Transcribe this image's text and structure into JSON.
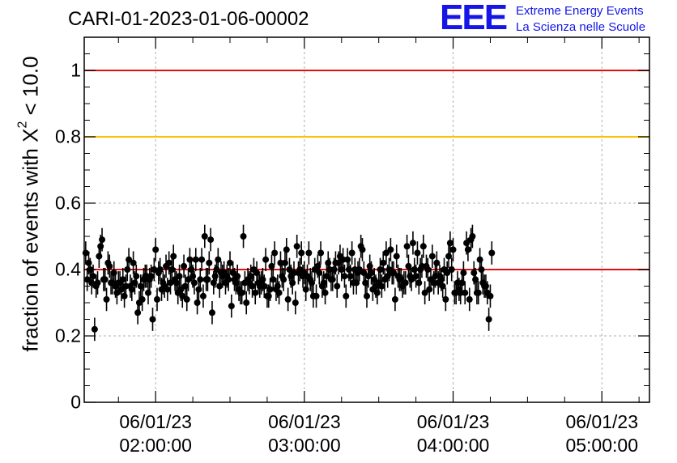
{
  "header": {
    "title": "CARI-01-2023-01-06-00002",
    "logo_text": "EEE",
    "logo_line1": "Extreme Energy Events",
    "logo_line2": "La Scienza nelle Scuole"
  },
  "chart_data": {
    "type": "scatter",
    "title": "CARI-01-2023-01-06-00002",
    "ylabel_prefix": "fraction of events with",
    "ylabel_symbol": "X",
    "ylabel_exponent": "2",
    "ylabel_suffix": "< 10.0",
    "ylim": [
      0,
      1.1
    ],
    "yticks": [
      {
        "value": 0,
        "label": "0"
      },
      {
        "value": 0.2,
        "label": "0.2"
      },
      {
        "value": 0.4,
        "label": "0.4"
      },
      {
        "value": 0.6,
        "label": "0.6"
      },
      {
        "value": 0.8,
        "label": "0.8"
      },
      {
        "value": 1,
        "label": "1"
      }
    ],
    "xlim_hours": [
      1.52,
      5.32
    ],
    "xticks": [
      {
        "hour": 2,
        "date": "06/01/23",
        "time": "02:00:00"
      },
      {
        "hour": 3,
        "date": "06/01/23",
        "time": "03:00:00"
      },
      {
        "hour": 4,
        "date": "06/01/23",
        "time": "04:00:00"
      },
      {
        "hour": 5,
        "date": "06/01/23",
        "time": "05:00:00"
      }
    ],
    "grid": true,
    "reference_lines": [
      {
        "value": 1.0,
        "color": "#e01010"
      },
      {
        "value": 0.8,
        "color": "#ffc000"
      },
      {
        "value": 0.4,
        "color": "#e01010"
      }
    ],
    "marker_color": "#000000",
    "series": [
      {
        "x_start_hour": 1.53,
        "x_step_hours": 0.01,
        "error": 0.035,
        "y": [
          0.45,
          0.37,
          0.42,
          0.4,
          0.36,
          0.38,
          0.22,
          0.35,
          0.36,
          0.44,
          0.47,
          0.49,
          0.37,
          0.37,
          0.31,
          0.42,
          0.41,
          0.36,
          0.36,
          0.39,
          0.35,
          0.33,
          0.36,
          0.36,
          0.34,
          0.37,
          0.32,
          0.35,
          0.4,
          0.43,
          0.35,
          0.34,
          0.42,
          0.36,
          0.38,
          0.27,
          0.3,
          0.35,
          0.31,
          0.37,
          0.38,
          0.38,
          0.33,
          0.37,
          0.38,
          0.25,
          0.4,
          0.46,
          0.31,
          0.39,
          0.4,
          0.34,
          0.36,
          0.35,
          0.41,
          0.34,
          0.42,
          0.36,
          0.4,
          0.44,
          0.37,
          0.36,
          0.33,
          0.38,
          0.34,
          0.32,
          0.41,
          0.35,
          0.31,
          0.37,
          0.43,
          0.4,
          0.38,
          0.36,
          0.43,
          0.3,
          0.34,
          0.37,
          0.43,
          0.32,
          0.5,
          0.37,
          0.37,
          0.42,
          0.49,
          0.27,
          0.36,
          0.38,
          0.4,
          0.43,
          0.35,
          0.39,
          0.38,
          0.39,
          0.36,
          0.38,
          0.37,
          0.42,
          0.29,
          0.39,
          0.37,
          0.36,
          0.38,
          0.34,
          0.33,
          0.33,
          0.5,
          0.36,
          0.3,
          0.37,
          0.36,
          0.38,
          0.35,
          0.4,
          0.33,
          0.39,
          0.36,
          0.35,
          0.36,
          0.37,
          0.35,
          0.43,
          0.32,
          0.32,
          0.34,
          0.41,
          0.37,
          0.45,
          0.34,
          0.35,
          0.33,
          0.42,
          0.38,
          0.37,
          0.42,
          0.46,
          0.31,
          0.4,
          0.38,
          0.36,
          0.39,
          0.3,
          0.47,
          0.39,
          0.4,
          0.45,
          0.38,
          0.39,
          0.34,
          0.38,
          0.45,
          0.37,
          0.36,
          0.32,
          0.4,
          0.32,
          0.41,
          0.39,
          0.45,
          0.35,
          0.36,
          0.33,
          0.38,
          0.42,
          0.4,
          0.37,
          0.37,
          0.4,
          0.42,
          0.35,
          0.42,
          0.44,
          0.4,
          0.43,
          0.38,
          0.32,
          0.43,
          0.4,
          0.38,
          0.45,
          0.36,
          0.4,
          0.36,
          0.39,
          0.4,
          0.47,
          0.46,
          0.39,
          0.36,
          0.32,
          0.38,
          0.41,
          0.39,
          0.34,
          0.37,
          0.35,
          0.33,
          0.36,
          0.4,
          0.35,
          0.42,
          0.37,
          0.45,
          0.38,
          0.4,
          0.46,
          0.39,
          0.39,
          0.31,
          0.44,
          0.38,
          0.37,
          0.37,
          0.35,
          0.36,
          0.36,
          0.47,
          0.41,
          0.38,
          0.37,
          0.48,
          0.4,
          0.38,
          0.45,
          0.36,
          0.4,
          0.41,
          0.47,
          0.33,
          0.41,
          0.4,
          0.34,
          0.37,
          0.44,
          0.36,
          0.38,
          0.42,
          0.36,
          0.38,
          0.37,
          0.35,
          0.4,
          0.31,
          0.39,
          0.44,
          0.48,
          0.4,
          0.46,
          0.33,
          0.33,
          0.36,
          0.34,
          0.33,
          0.36,
          0.39,
          0.33,
          0.48,
          0.46,
          0.31,
          0.49,
          0.5,
          0.39,
          0.37,
          0.33,
          0.33,
          0.43,
          0.4,
          0.36,
          0.35,
          0.35,
          0.33,
          0.25,
          0.32,
          0.45
        ]
      }
    ]
  }
}
